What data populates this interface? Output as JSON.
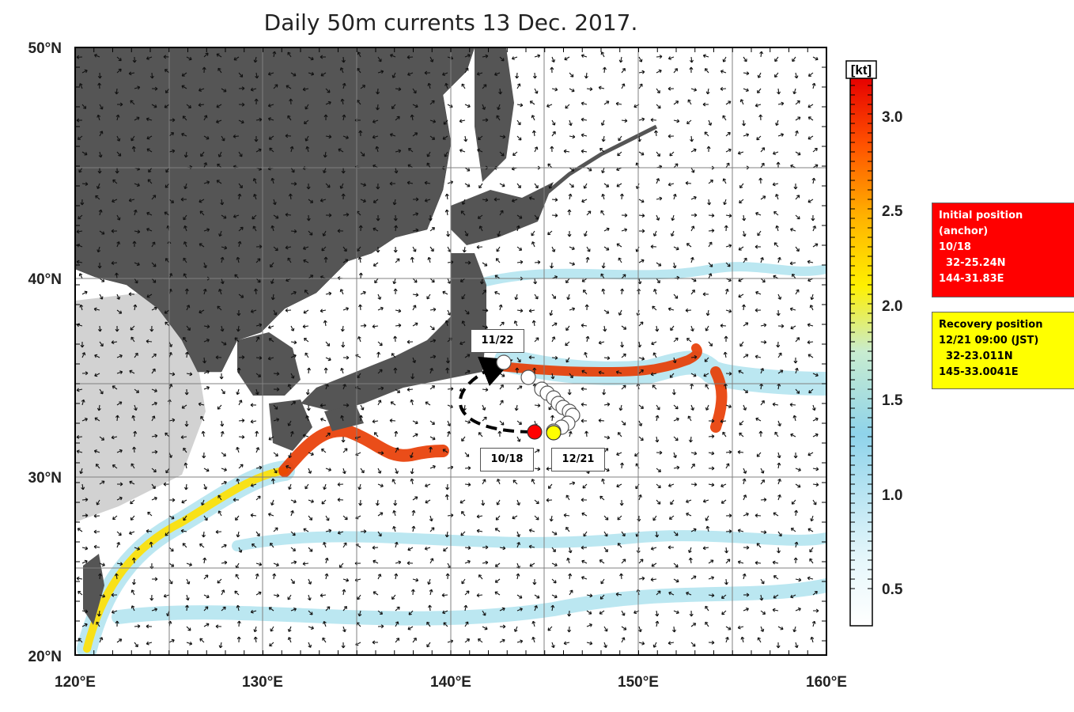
{
  "title": "Daily 50m currents 13 Dec. 2017.",
  "axes": {
    "lon_labels": [
      "120°E",
      "130°E",
      "140°E",
      "150°E",
      "160°E"
    ],
    "lat_labels": [
      "20°N",
      "30°N",
      "40°N",
      "50°N"
    ]
  },
  "colorbar": {
    "unit": "[kt]",
    "ticks": [
      "0.5",
      "1.0",
      "1.5",
      "2.0",
      "2.5",
      "3.0"
    ]
  },
  "initial_box": {
    "line1": "Initial position",
    "line2": "(anchor)",
    "line3": "10/18",
    "line4": "  32-25.24N",
    "line5": "144-31.83E"
  },
  "recovery_box": {
    "line1": "Recovery position",
    "line2": "12/21 09:00 (JST)",
    "line3": "  32-23.011N",
    "line4": "145-33.0041E"
  },
  "date_labels": {
    "start": "10/18",
    "mid": "11/22",
    "end": "12/21"
  },
  "colors": {
    "land": "#555555",
    "shelf": "#d2d2d2",
    "ocean": "#ffffff",
    "slow_current": "#b4e4f0",
    "fast_current": "#e83a00",
    "initial_marker": "#ff0000",
    "recovery_marker": "#ffff00",
    "track_marker": "#ffffff"
  }
}
